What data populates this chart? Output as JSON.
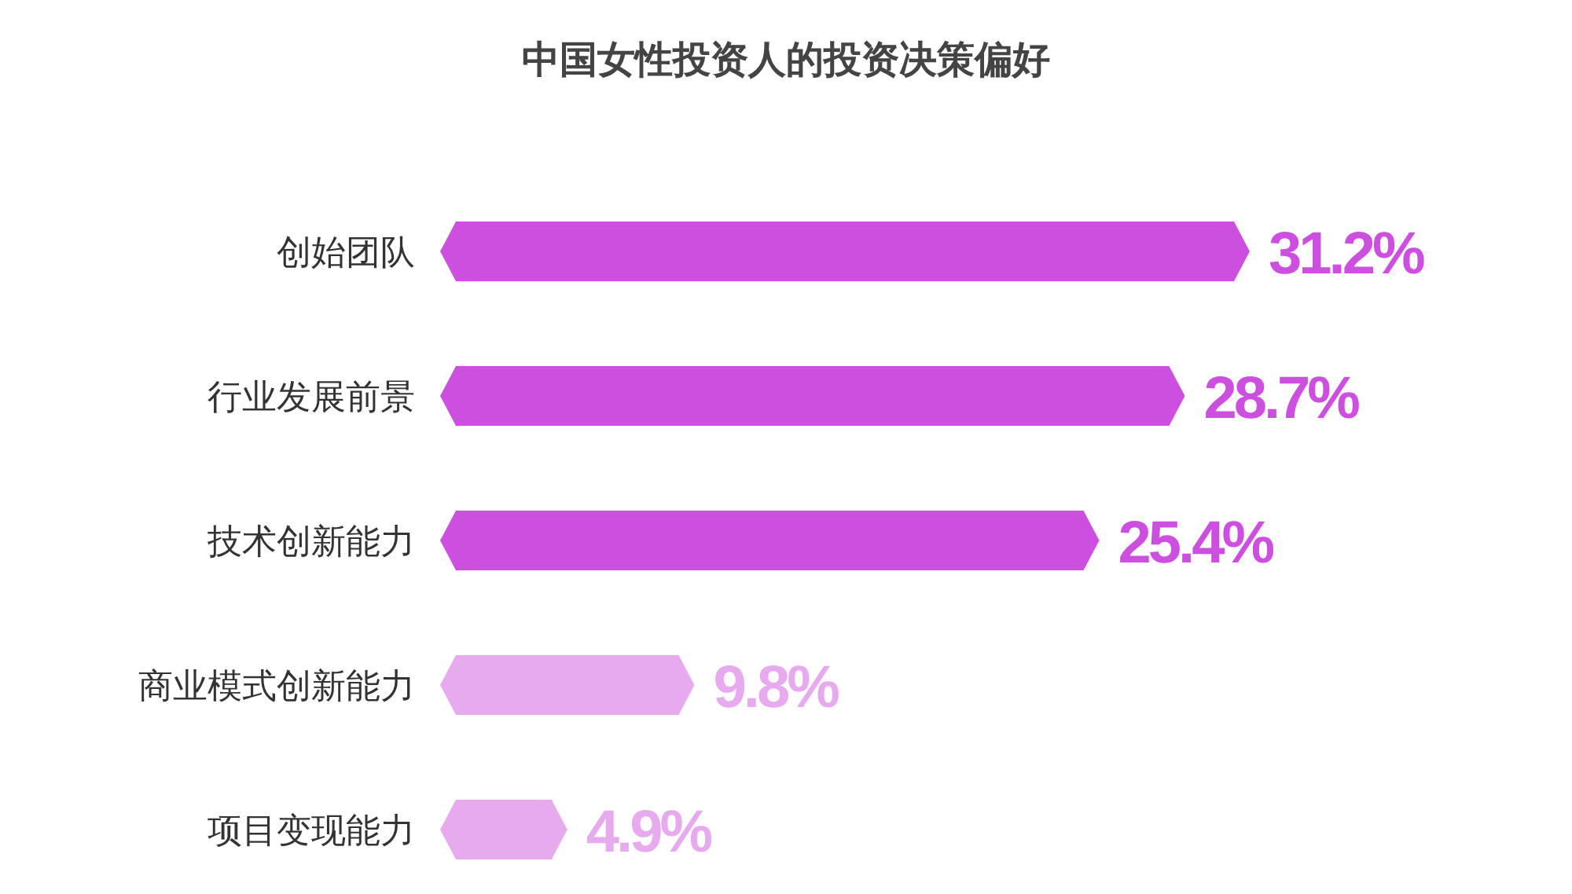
{
  "chart_data": {
    "type": "bar",
    "orientation": "horizontal",
    "title": "中国女性投资人的投资决策偏好",
    "categories": [
      "创始团队",
      "行业发展前景",
      "技术创新能力",
      "商业模式创新能力",
      "项目变现能力"
    ],
    "values": [
      31.2,
      28.7,
      25.4,
      9.8,
      4.9
    ],
    "colors": [
      "#cd4fe0",
      "#cd4fe0",
      "#cd4fe0",
      "#e8aaee",
      "#e8aaee"
    ],
    "value_labels": [
      "31.2%",
      "28.7%",
      "25.4%",
      "9.8%",
      "4.9%"
    ]
  }
}
